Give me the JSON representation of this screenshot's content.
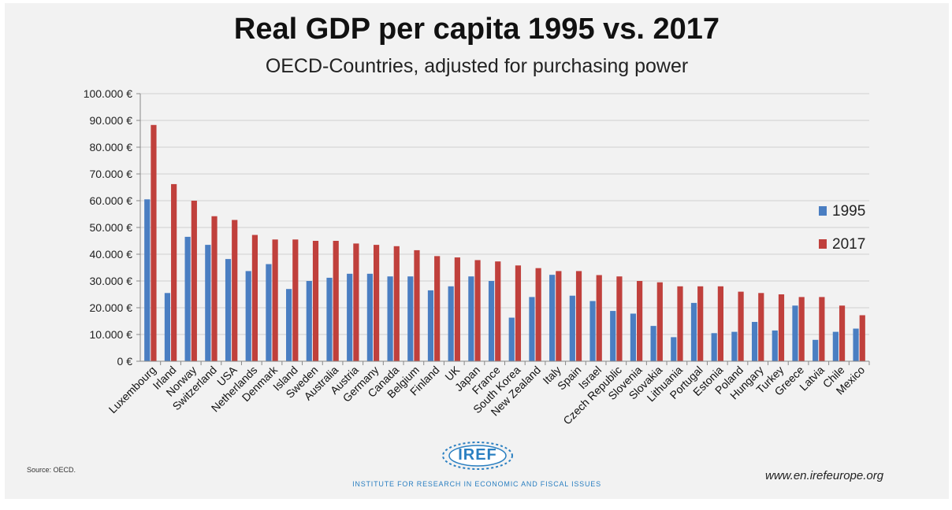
{
  "title": "Real GDP per capita 1995 vs. 2017",
  "subtitle": "OECD-Countries, adjusted for purchasing power",
  "source": "Source: OECD.",
  "website": "www.en.irefeurope.org",
  "logo_text": "IREF",
  "institute": "INSTITUTE FOR RESEARCH IN ECONOMIC AND FISCAL ISSUES",
  "colors": {
    "s1995": "#4a7ec2",
    "s2017": "#c0403c",
    "grid": "#d0d0d0",
    "axis": "#888888"
  },
  "chart_data": {
    "type": "bar",
    "ylim": [
      0,
      100000
    ],
    "yticks": [
      "0 €",
      "10.000 €",
      "20.000 €",
      "30.000 €",
      "40.000 €",
      "50.000 €",
      "60.000 €",
      "70.000 €",
      "80.000 €",
      "90.000 €",
      "100.000 €"
    ],
    "grid": true,
    "legend_position": "right",
    "categories": [
      "Luxembourg",
      "Irland",
      "Norway",
      "Switzerland",
      "USA",
      "Netherlands",
      "Denmark",
      "Island",
      "Sweden",
      "Australia",
      "Austria",
      "Germany",
      "Canada",
      "Belgium",
      "Finland",
      "UK",
      "Japan",
      "France",
      "South Korea",
      "New Zealand",
      "Italy",
      "Spain",
      "Israel",
      "Czech Republic",
      "Slovenia",
      "Slovakia",
      "Lithuania",
      "Portugal",
      "Estonia",
      "Poland",
      "Hungary",
      "Turkey",
      "Greece",
      "Latvia",
      "Chile",
      "Mexico"
    ],
    "series": [
      {
        "name": "1995",
        "color": "#4a7ec2",
        "values": [
          60500,
          25500,
          46500,
          43500,
          38200,
          33700,
          36300,
          27000,
          30000,
          31200,
          32700,
          32700,
          31700,
          31700,
          26500,
          28000,
          31700,
          30000,
          16300,
          24000,
          32300,
          24500,
          22500,
          18800,
          17800,
          13200,
          9000,
          21800,
          10500,
          11000,
          14700,
          11500,
          20800,
          8000,
          11000,
          12200
        ]
      },
      {
        "name": "2017",
        "color": "#c0403c",
        "values": [
          88300,
          66200,
          60000,
          54200,
          52800,
          47200,
          45500,
          45500,
          45000,
          45000,
          44000,
          43500,
          43000,
          41500,
          39300,
          38800,
          37800,
          37300,
          35800,
          34800,
          33700,
          33700,
          32200,
          31700,
          30000,
          29500,
          28000,
          28000,
          28000,
          26000,
          25500,
          25000,
          24000,
          24000,
          20800,
          17200
        ]
      }
    ]
  }
}
